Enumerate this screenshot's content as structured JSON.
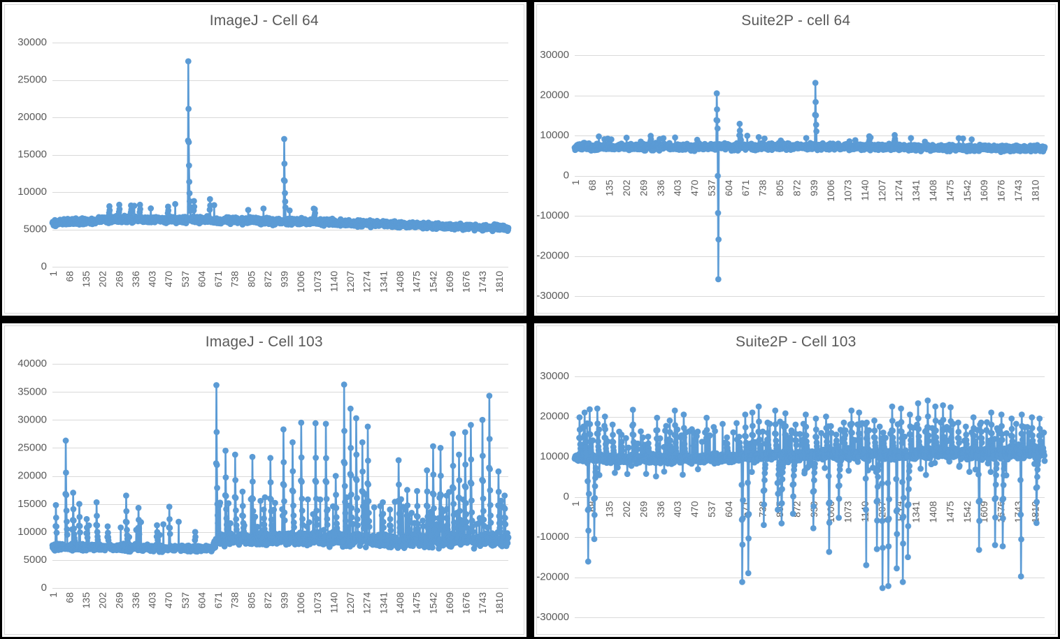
{
  "colors": {
    "series": "#5B9BD5",
    "gridline": "#D9D9D9",
    "axis_text": "#595959",
    "title_text": "#595959",
    "panel_background": "#FFFFFF",
    "divider": "#000000"
  },
  "axes": {
    "x_ticks": [
      1,
      68,
      135,
      202,
      269,
      336,
      403,
      470,
      537,
      604,
      671,
      738,
      805,
      872,
      939,
      1006,
      1073,
      1140,
      1207,
      1274,
      1341,
      1408,
      1475,
      1542,
      1609,
      1676,
      1743,
      1810
    ]
  },
  "chart_data": [
    {
      "type": "scatter-line",
      "title": "ImageJ - Cell 64",
      "n": 1850,
      "seed": 101,
      "ylim": [
        0,
        30000
      ],
      "y_step": 5000,
      "x_axis_position": "bottom",
      "legend": "none",
      "grid": "horizontal",
      "baseline_trend": [
        [
          1,
          5900,
          620
        ],
        [
          260,
          6350,
          650
        ],
        [
          600,
          6250,
          620
        ],
        [
          1000,
          6050,
          600
        ],
        [
          1400,
          5650,
          560
        ],
        [
          1850,
          5150,
          520
        ]
      ],
      "bursts": [
        {
          "from": 180,
          "to": 1100,
          "prob": 0.01,
          "min": 1200,
          "max": 2200
        }
      ],
      "spikes": [
        [
          232,
          8100
        ],
        [
          272,
          8300
        ],
        [
          320,
          8200
        ],
        [
          356,
          8300
        ],
        [
          470,
          8050
        ],
        [
          552,
          27500,
          1,
          8
        ],
        [
          575,
          8800
        ],
        [
          640,
          9050
        ],
        [
          941,
          17100,
          1,
          5
        ],
        [
          1065,
          7700
        ]
      ]
    },
    {
      "type": "scatter-line",
      "title": "Suite2P - cell 64",
      "n": 1850,
      "seed": 202,
      "ylim": [
        -30000,
        30000
      ],
      "y_step": 10000,
      "x_axis_position": "zero",
      "legend": "none",
      "grid": "horizontal",
      "baseline_trend": [
        [
          1,
          7100,
          1150
        ],
        [
          900,
          7250,
          1150
        ],
        [
          1400,
          6950,
          1050
        ],
        [
          1850,
          6700,
          1000
        ]
      ],
      "bursts": [
        {
          "from": 1,
          "to": 1850,
          "prob": 0.012,
          "min": 1500,
          "max": 2600
        }
      ],
      "spikes": [
        [
          300,
          9900
        ],
        [
          560,
          20500,
          1,
          3
        ],
        [
          566,
          -25800,
          2,
          1
        ],
        [
          650,
          12900
        ],
        [
          948,
          23100,
          1,
          4
        ],
        [
          1160,
          9800
        ],
        [
          1260,
          10100
        ]
      ]
    },
    {
      "type": "scatter-line",
      "title": "ImageJ - Cell 103",
      "n": 1850,
      "seed": 303,
      "ylim": [
        0,
        40000
      ],
      "y_step": 5000,
      "x_axis_position": "bottom",
      "legend": "none",
      "grid": "horizontal",
      "baseline_trend": [
        [
          1,
          7300,
          820
        ],
        [
          650,
          7050,
          750
        ],
        [
          670,
          8600,
          1500
        ],
        [
          1100,
          8900,
          1700
        ],
        [
          1400,
          8300,
          1600
        ],
        [
          1850,
          8700,
          1800
        ]
      ],
      "bursts": [
        {
          "from": 1,
          "to": 655,
          "prob": 0.025,
          "min": 1500,
          "max": 5500
        },
        {
          "from": 656,
          "to": 1850,
          "prob": 0.07,
          "min": 2000,
          "max": 8000
        }
      ],
      "spikes": [
        [
          15,
          14800
        ],
        [
          55,
          26300,
          1,
          6
        ],
        [
          85,
          17000
        ],
        [
          110,
          15000
        ],
        [
          140,
          12300
        ],
        [
          180,
          15300
        ],
        [
          225,
          11000
        ],
        [
          300,
          16500
        ],
        [
          350,
          14300
        ],
        [
          425,
          11200
        ],
        [
          475,
          14500
        ],
        [
          580,
          10000
        ],
        [
          666,
          36200,
          1,
          8
        ],
        [
          703,
          24500
        ],
        [
          742,
          23800
        ],
        [
          772,
          17200
        ],
        [
          812,
          23400
        ],
        [
          858,
          14000
        ],
        [
          885,
          23200
        ],
        [
          938,
          28300,
          1,
          5
        ],
        [
          975,
          26000
        ],
        [
          1010,
          29500
        ],
        [
          1068,
          29400
        ],
        [
          1110,
          29300
        ],
        [
          1150,
          20000
        ],
        [
          1184,
          36300,
          1,
          8
        ],
        [
          1210,
          32000
        ],
        [
          1233,
          30300
        ],
        [
          1258,
          26000
        ],
        [
          1280,
          28800
        ],
        [
          1341,
          15300
        ],
        [
          1370,
          14000
        ],
        [
          1405,
          22800
        ],
        [
          1440,
          17500
        ],
        [
          1480,
          17300
        ],
        [
          1520,
          21000
        ],
        [
          1545,
          25300
        ],
        [
          1575,
          25000
        ],
        [
          1600,
          16500
        ],
        [
          1625,
          27500
        ],
        [
          1650,
          23800
        ],
        [
          1675,
          27800
        ],
        [
          1698,
          29100
        ],
        [
          1745,
          30000
        ],
        [
          1773,
          34300,
          1,
          6
        ],
        [
          1810,
          20800
        ],
        [
          1835,
          16500
        ]
      ]
    },
    {
      "type": "scatter-line",
      "title": "Suite2P - Cell 103",
      "n": 1850,
      "seed": 404,
      "ylim": [
        -30000,
        30000
      ],
      "y_step": 10000,
      "x_axis_position": "zero",
      "legend": "none",
      "grid": "horizontal",
      "baseline_trend": [
        [
          1,
          9600,
          1600
        ],
        [
          400,
          9300,
          1500
        ],
        [
          700,
          9900,
          1700
        ],
        [
          1050,
          10600,
          2000
        ],
        [
          1850,
          11000,
          2100
        ]
      ],
      "bursts": [
        {
          "from": 1,
          "to": 1850,
          "prob": 0.1,
          "min": 2500,
          "max": 8500
        },
        {
          "from": 1,
          "to": 1850,
          "prob": 0.03,
          "min": -4500,
          "max": -2000
        }
      ],
      "spikes": [
        [
          20,
          19800
        ],
        [
          40,
          21000
        ],
        [
          54,
          -16100,
          2,
          3
        ],
        [
          60,
          21800
        ],
        [
          78,
          -10500
        ],
        [
          90,
          22000
        ],
        [
          120,
          20000
        ],
        [
          150,
          18000
        ],
        [
          185,
          15500
        ],
        [
          230,
          21700
        ],
        [
          290,
          15000
        ],
        [
          325,
          19700
        ],
        [
          375,
          19000
        ],
        [
          395,
          21500
        ],
        [
          430,
          20500
        ],
        [
          470,
          16000
        ],
        [
          520,
          19700
        ],
        [
          600,
          14800
        ],
        [
          650,
          13500
        ],
        [
          660,
          -21200,
          2,
          3
        ],
        [
          672,
          20500
        ],
        [
          684,
          -19000,
          2,
          2
        ],
        [
          700,
          21000
        ],
        [
          725,
          22500
        ],
        [
          745,
          -7000
        ],
        [
          760,
          18500
        ],
        [
          790,
          21500
        ],
        [
          800,
          -3200
        ],
        [
          815,
          -6600
        ],
        [
          830,
          20800
        ],
        [
          860,
          -4200
        ],
        [
          870,
          18000
        ],
        [
          910,
          20500
        ],
        [
          940,
          -7800
        ],
        [
          950,
          19500
        ],
        [
          990,
          20000
        ],
        [
          1002,
          -13700,
          2,
          2
        ],
        [
          1030,
          15500
        ],
        [
          1040,
          -5200
        ],
        [
          1060,
          18500
        ],
        [
          1090,
          21500
        ],
        [
          1120,
          21000
        ],
        [
          1148,
          -17000,
          2,
          2
        ],
        [
          1150,
          18500
        ],
        [
          1180,
          19000
        ],
        [
          1190,
          -13000
        ],
        [
          1212,
          -22700,
          2,
          3
        ],
        [
          1215,
          16000
        ],
        [
          1235,
          -22200,
          2,
          3
        ],
        [
          1250,
          22500
        ],
        [
          1268,
          -17800,
          2,
          2
        ],
        [
          1285,
          22000
        ],
        [
          1292,
          -21200,
          2,
          3
        ],
        [
          1312,
          -15000
        ],
        [
          1320,
          20500
        ],
        [
          1352,
          23300
        ],
        [
          1390,
          24000,
          1,
          4
        ],
        [
          1420,
          22500
        ],
        [
          1450,
          22800
        ],
        [
          1480,
          22300
        ],
        [
          1510,
          18500
        ],
        [
          1540,
          17500
        ],
        [
          1570,
          19800
        ],
        [
          1592,
          -13200,
          2,
          2
        ],
        [
          1600,
          18500
        ],
        [
          1640,
          21000
        ],
        [
          1655,
          -12000
        ],
        [
          1680,
          20500
        ],
        [
          1685,
          -12300
        ],
        [
          1720,
          19500
        ],
        [
          1757,
          -19800,
          2,
          3
        ],
        [
          1760,
          20500
        ],
        [
          1800,
          19800
        ],
        [
          1818,
          -6500
        ],
        [
          1830,
          19500
        ]
      ]
    }
  ]
}
